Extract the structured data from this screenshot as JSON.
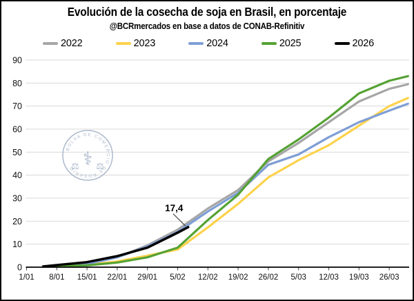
{
  "header": {
    "title": "Evolución de la cosecha de soja en Brasil, en porcentaje",
    "subtitle": "@BCRmercados en base a datos de CONAB-Refinitiv"
  },
  "watermark": {
    "text": "BOLSA DE COMERCIO DE ROSARIO"
  },
  "colors": {
    "gridline": "#d8d8d8",
    "axis": "#000000",
    "watermark": "#a4b1c6"
  },
  "chart_data": {
    "type": "line",
    "title": "Evolución de la cosecha de soja en Brasil, en porcentaje",
    "subtitle": "@BCRmercados en base a datos de CONAB-Refinitiv",
    "xlabel": "",
    "ylabel": "",
    "ylim": [
      0,
      90
    ],
    "y_ticks": [
      0,
      10,
      20,
      30,
      40,
      50,
      60,
      70,
      80,
      90
    ],
    "x_tick_labels": [
      "1/01",
      "8/01",
      "15/01",
      "22/01",
      "29/01",
      "5/02",
      "12/02",
      "19/02",
      "26/02",
      "5/03",
      "12/03",
      "19/03",
      "26/03"
    ],
    "grid": "horizontal-only",
    "legend_position": "top",
    "series": [
      {
        "name": "2022",
        "color": "#a6a6a6",
        "x": [
          0.55,
          1,
          2,
          3,
          4,
          5,
          6,
          7,
          8,
          9,
          10,
          11,
          12,
          12.62
        ],
        "values": [
          0.3,
          0.8,
          1.3,
          4.3,
          9.5,
          16.3,
          25.5,
          33.5,
          46,
          54,
          63,
          72,
          77.5,
          79.5
        ]
      },
      {
        "name": "2023",
        "color": "#fdd24c",
        "x": [
          0.55,
          1,
          2,
          3,
          4,
          5,
          6,
          7,
          8,
          9,
          10,
          11,
          12,
          12.62
        ],
        "values": [
          0.2,
          0.5,
          1.0,
          2.5,
          5.0,
          7.7,
          17.3,
          27.5,
          39,
          46.5,
          53,
          61.5,
          70,
          73.5
        ]
      },
      {
        "name": "2024",
        "color": "#7e9ed5",
        "x": [
          0.55,
          1,
          2,
          3,
          4,
          5,
          6,
          7,
          8,
          9,
          10,
          11,
          12,
          12.62
        ],
        "values": [
          0.3,
          0.7,
          1.4,
          4.3,
          9.0,
          15.3,
          24.2,
          32.3,
          44.5,
          49,
          56.5,
          63,
          68,
          71
        ]
      },
      {
        "name": "2025",
        "color": "#55a233",
        "x": [
          0.55,
          1,
          2,
          3,
          4,
          5,
          6,
          7,
          8,
          9,
          10,
          11,
          12,
          12.62
        ],
        "values": [
          0.2,
          0.4,
          0.8,
          2.0,
          4.3,
          8.5,
          20.5,
          31.5,
          47,
          55.5,
          65,
          75.5,
          81,
          83
        ]
      },
      {
        "name": "2026",
        "color": "#000000",
        "x": [
          0.55,
          1,
          2,
          3,
          4,
          5,
          5.35
        ],
        "values": [
          0.3,
          0.9,
          2.2,
          4.8,
          8.5,
          15.0,
          17.4
        ]
      }
    ],
    "annotation": {
      "label": "17,4",
      "series": "2026",
      "x": 4.58,
      "y": 24.3,
      "leader": [
        [
          4.85,
          23.2
        ],
        [
          5.26,
          17.9
        ]
      ]
    }
  }
}
